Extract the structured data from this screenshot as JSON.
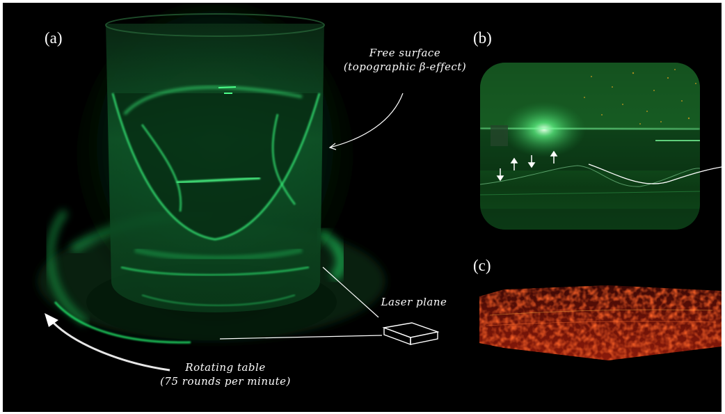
{
  "labels": {
    "panel_a": "(a)",
    "panel_b": "(b)",
    "panel_c": "(c)"
  },
  "annotations": {
    "free_surface_line1": "Free surface",
    "free_surface_line2": "(topographic β-effect)",
    "laser_plane": "Laser plane",
    "rotating_table_line1": "Rotating table",
    "rotating_table_line2": "(75 rounds per minute)"
  },
  "colors": {
    "background": "#000000",
    "laser_green": "#22e36a",
    "heatmap_red": "#d2200e",
    "annotation": "#ffffff"
  }
}
